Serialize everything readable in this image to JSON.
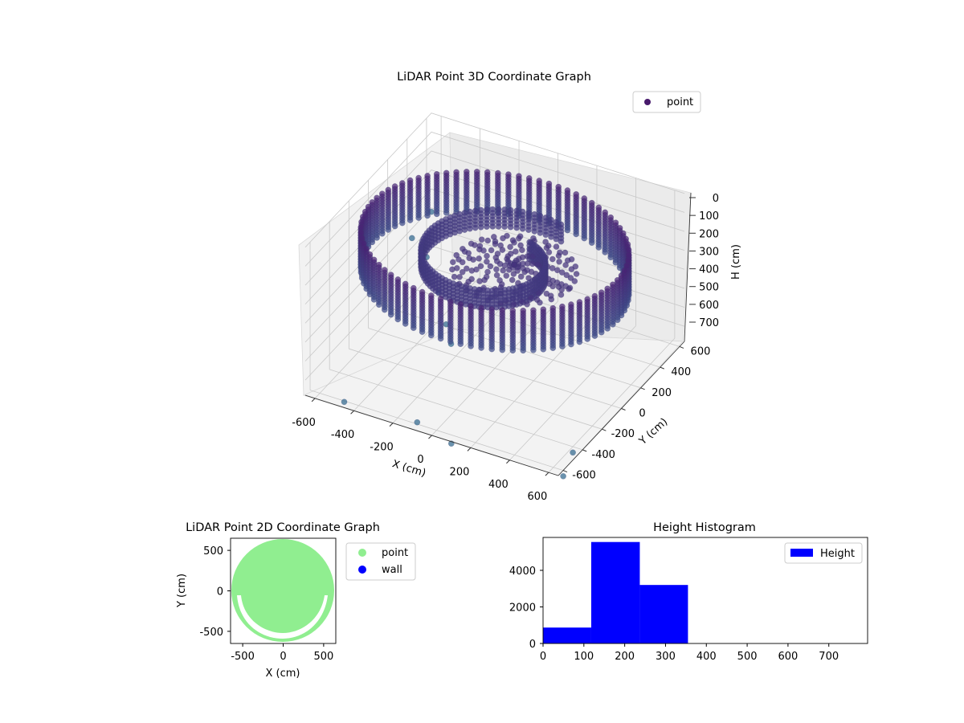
{
  "chart_data": [
    {
      "type": "scatter",
      "projection": "3d",
      "title": "LiDAR Point 3D Coordinate Graph",
      "xlabel": "X (cm)",
      "ylabel": "Y (cm)",
      "zlabel": "H (cm)",
      "xlim": [
        -650,
        650
      ],
      "ylim": [
        -650,
        650
      ],
      "zlim": [
        780,
        0
      ],
      "xticks": [
        -600,
        -400,
        -200,
        0,
        200,
        400,
        600
      ],
      "yticks": [
        600,
        400,
        200,
        0,
        -200,
        -400,
        -600
      ],
      "zticks": [
        0,
        100,
        200,
        300,
        400,
        500,
        600,
        700
      ],
      "legend": {
        "position": "top-right",
        "entries": [
          "point"
        ]
      },
      "grid": true,
      "colormap": "viridis",
      "series": [
        {
          "name": "point",
          "shape": "cylindrical wall of points around the centre, with an inner spiral structure and a dense central disc",
          "wall_radius_cm": 600,
          "wall_height_range_cm": [
            100,
            330
          ],
          "outliers": [
            {
              "x": -600,
              "y": 550,
              "h": 450
            },
            {
              "x": -650,
              "y": 450,
              "h": 550
            },
            {
              "x": -500,
              "y": 300,
              "h": 520
            },
            {
              "x": -380,
              "y": 180,
              "h": 600
            },
            {
              "x": -300,
              "y": 100,
              "h": 700
            },
            {
              "x": -250,
              "y": 50,
              "h": 760
            },
            {
              "x": -50,
              "y": -700,
              "h": 700
            },
            {
              "x": 150,
              "y": -750,
              "h": 720
            },
            {
              "x": -450,
              "y": -650,
              "h": 750
            },
            {
              "x": 650,
              "y": -500,
              "h": 740
            },
            {
              "x": 700,
              "y": -700,
              "h": 740
            }
          ]
        }
      ]
    },
    {
      "type": "scatter",
      "title": "LiDAR Point 2D Coordinate Graph",
      "xlabel": "X (cm)",
      "ylabel": "Y (cm)",
      "xlim": [
        -650,
        650
      ],
      "ylim": [
        -650,
        650
      ],
      "xticks": [
        -500,
        0,
        500
      ],
      "yticks": [
        500,
        0,
        -500
      ],
      "legend": {
        "position": "outside-right",
        "entries": [
          "point",
          "wall"
        ]
      },
      "series": [
        {
          "name": "point",
          "color": "#90ee90",
          "shape": "filled disc of radius about 640 cm with a white C-shaped gap in the lower half"
        },
        {
          "name": "wall",
          "color": "#0000ff"
        }
      ]
    },
    {
      "type": "bar",
      "subtype": "histogram",
      "title": "Height Histogram",
      "xlabel": "",
      "ylabel": "",
      "xlim": [
        0,
        795
      ],
      "ylim": [
        0,
        5800
      ],
      "xticks": [
        0,
        100,
        200,
        300,
        400,
        500,
        600,
        700
      ],
      "yticks": [
        0,
        2000,
        4000
      ],
      "legend": {
        "position": "top-right",
        "entries": [
          "Height"
        ]
      },
      "series": [
        {
          "name": "Height",
          "color": "#0000ff",
          "bin_edges": [
            0,
            118,
            237,
            355,
            473,
            592,
            710,
            795
          ],
          "values": [
            870,
            5550,
            3200,
            0,
            0,
            0,
            0
          ]
        }
      ]
    }
  ],
  "colors": {
    "viridis_dark": "#440154",
    "viridis_mid": "#3b528b",
    "viridis_teal": "#21908d",
    "point_green": "#90ee90",
    "wall_blue": "#0000ff",
    "hist_blue": "#0000ff"
  }
}
